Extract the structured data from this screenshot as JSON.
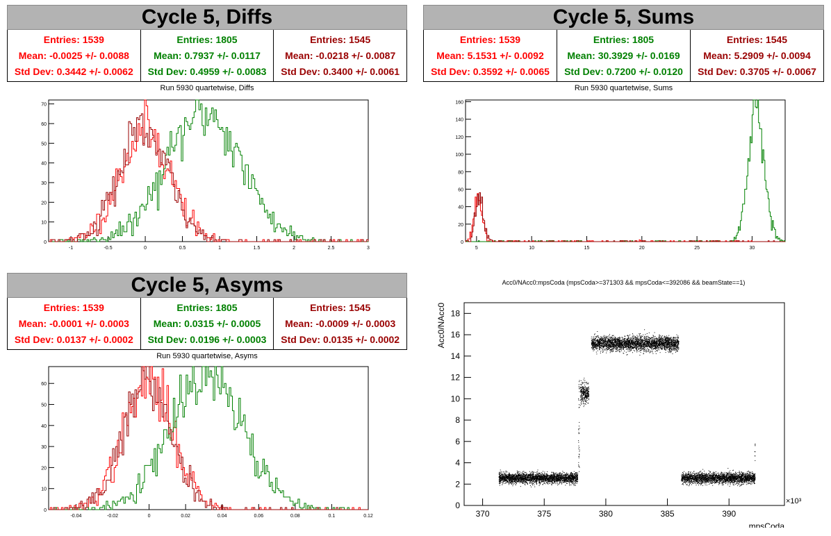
{
  "colors": {
    "red": "#ff0000",
    "green": "#008000",
    "darkred": "#990000",
    "title_bg": "#b3b3b3"
  },
  "panels": {
    "diffs": {
      "title": "Cycle 5, Diffs",
      "subtitle": "Run 5930 quartetwise, Diffs",
      "stats": [
        {
          "entries": "Entries: 1539",
          "mean": "Mean: -0.0025 +/- 0.0088",
          "std": "Std Dev: 0.3442 +/- 0.0062",
          "color": "#ff0000"
        },
        {
          "entries": "Entries: 1805",
          "mean": "Mean: 0.7937 +/- 0.0117",
          "std": "Std Dev: 0.4959 +/- 0.0083",
          "color": "#008000"
        },
        {
          "entries": "Entries: 1545",
          "mean": "Mean: -0.0218 +/- 0.0087",
          "std": "Std Dev: 0.3400 +/- 0.0061",
          "color": "#990000"
        }
      ]
    },
    "sums": {
      "title": "Cycle 5, Sums",
      "subtitle": "Run 5930 quartetwise, Sums",
      "stats": [
        {
          "entries": "Entries: 1539",
          "mean": "Mean: 5.1531 +/- 0.0092",
          "std": "Std Dev: 0.3592 +/- 0.0065",
          "color": "#ff0000"
        },
        {
          "entries": "Entries: 1805",
          "mean": "Mean: 30.3929 +/- 0.0169",
          "std": "Std Dev: 0.7200 +/- 0.0120",
          "color": "#008000"
        },
        {
          "entries": "Entries: 1545",
          "mean": "Mean: 5.2909 +/- 0.0094",
          "std": "Std Dev: 0.3705 +/- 0.0067",
          "color": "#990000"
        }
      ]
    },
    "asyms": {
      "title": "Cycle 5, Asyms",
      "subtitle": "Run 5930 quartetwise, Asyms",
      "stats": [
        {
          "entries": "Entries: 1539",
          "mean": "Mean: -0.0001 +/- 0.0003",
          "std": "Std Dev: 0.0137 +/- 0.0002",
          "color": "#ff0000"
        },
        {
          "entries": "Entries: 1805",
          "mean": "Mean: 0.0315 +/- 0.0005",
          "std": "Std Dev: 0.0196 +/- 0.0003",
          "color": "#008000"
        },
        {
          "entries": "Entries: 1545",
          "mean": "Mean: -0.0009 +/- 0.0003",
          "std": "Std Dev: 0.0135 +/- 0.0002",
          "color": "#990000"
        }
      ]
    },
    "scatter": {
      "title": "Acc0/NAcc0:mpsCoda (mpsCoda>=371303 && mpsCoda<=392086 && beamState==1)"
    }
  },
  "chart_data": [
    {
      "type": "histogram",
      "title": "Run 5930 quartetwise, Diffs",
      "xlim": [
        -1.3,
        3.0
      ],
      "ylim": [
        0,
        72
      ],
      "xticks": [
        "-1",
        "-0.5",
        "0",
        "0.5",
        "1",
        "1.5",
        "2",
        "2.5",
        "3"
      ],
      "yticks": [
        "0",
        "10",
        "20",
        "30",
        "40",
        "50",
        "60",
        "70"
      ],
      "series": [
        {
          "color": "#ff0000",
          "entries": 1539,
          "mean": -0.0025,
          "std": 0.3442,
          "peak": 56
        },
        {
          "color": "#008000",
          "entries": 1805,
          "mean": 0.7937,
          "std": 0.4959,
          "peak": 66
        },
        {
          "color": "#990000",
          "entries": 1545,
          "mean": -0.0218,
          "std": 0.34,
          "peak": 55
        }
      ]
    },
    {
      "type": "histogram",
      "title": "Run 5930 quartetwise, Sums",
      "xlim": [
        4.0,
        33.0
      ],
      "ylim": [
        0,
        162
      ],
      "xticks": [
        "5",
        "10",
        "15",
        "20",
        "25",
        "30"
      ],
      "yticks": [
        "0",
        "20",
        "40",
        "60",
        "80",
        "100",
        "120",
        "140",
        "160"
      ],
      "series": [
        {
          "color": "#ff0000",
          "entries": 1539,
          "mean": 5.1531,
          "std": 0.3592,
          "peak": 52
        },
        {
          "color": "#008000",
          "entries": 1805,
          "mean": 30.3929,
          "std": 0.72,
          "peak": 155
        },
        {
          "color": "#990000",
          "entries": 1545,
          "mean": 5.2909,
          "std": 0.3705,
          "peak": 54
        }
      ]
    },
    {
      "type": "histogram",
      "title": "Run 5930 quartetwise, Asyms",
      "xlim": [
        -0.055,
        0.12
      ],
      "ylim": [
        0,
        68
      ],
      "xticks": [
        "-0.04",
        "-0.02",
        "0",
        "0.02",
        "0.04",
        "0.06",
        "0.08",
        "0.1",
        "0.12"
      ],
      "yticks": [
        "0",
        "10",
        "20",
        "30",
        "40",
        "50",
        "60"
      ],
      "series": [
        {
          "color": "#ff0000",
          "entries": 1539,
          "mean": -0.0001,
          "std": 0.0137,
          "peak": 60
        },
        {
          "color": "#008000",
          "entries": 1805,
          "mean": 0.0315,
          "std": 0.0196,
          "peak": 64
        },
        {
          "color": "#990000",
          "entries": 1545,
          "mean": -0.0009,
          "std": 0.0135,
          "peak": 60
        }
      ]
    },
    {
      "type": "scatter",
      "title": "Acc0/NAcc0:mpsCoda (mpsCoda>=371303 && mpsCoda<=392086 && beamState==1)",
      "xlabel": "mpsCoda",
      "ylabel": "Acc0/NAcc0",
      "xscale_label": "×10³",
      "xlim": [
        368.5,
        394.5
      ],
      "ylim": [
        0,
        19
      ],
      "xticks": [
        "370",
        "375",
        "380",
        "385",
        "390"
      ],
      "yticks": [
        "0",
        "2",
        "4",
        "6",
        "8",
        "10",
        "12",
        "14",
        "16",
        "18"
      ],
      "clusters": [
        {
          "x": [
            371.3,
            377.7
          ],
          "y_center": 2.6,
          "y_spread": 0.45,
          "n": 2600
        },
        {
          "x": [
            377.9,
            378.6
          ],
          "y_center": 10.5,
          "y_spread": 0.9,
          "n": 300
        },
        {
          "x": [
            378.8,
            385.9
          ],
          "y_center": 15.2,
          "y_spread": 0.6,
          "n": 3000
        },
        {
          "x": [
            386.1,
            392.1
          ],
          "y_center": 2.6,
          "y_spread": 0.45,
          "n": 2400
        }
      ]
    }
  ]
}
